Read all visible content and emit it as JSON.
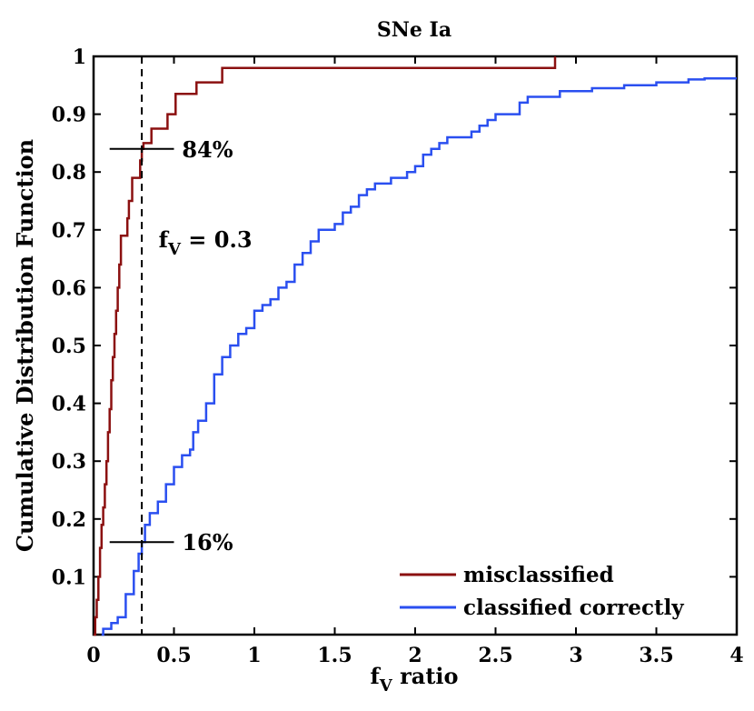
{
  "chart_data": {
    "type": "line",
    "step": true,
    "title": "SNe Ia",
    "xlabel_main": "f",
    "xlabel_sub": "V",
    "xlabel_rest": " ratio",
    "ylabel": "Cumulative Distribution Function",
    "xlim": [
      0,
      4
    ],
    "ylim": [
      0,
      1
    ],
    "x_ticks": [
      0,
      0.5,
      1,
      1.5,
      2,
      2.5,
      3,
      3.5,
      4
    ],
    "x_tick_labels": [
      "0",
      "0.5",
      "1",
      "1.5",
      "2",
      "2.5",
      "3",
      "3.5",
      "4"
    ],
    "y_ticks": [
      0.1,
      0.2,
      0.3,
      0.4,
      0.5,
      0.6,
      0.7,
      0.8,
      0.9,
      1
    ],
    "y_tick_labels": [
      "0.1",
      "0.2",
      "0.3",
      "0.4",
      "0.5",
      "0.6",
      "0.7",
      "0.8",
      "0.9",
      "1"
    ],
    "grid": false,
    "legend_position": "bottom-right",
    "series": [
      {
        "name": "misclassified",
        "color": "#8b1010",
        "points": [
          [
            0,
            0
          ],
          [
            0.01,
            0.03
          ],
          [
            0.02,
            0.06
          ],
          [
            0.03,
            0.1
          ],
          [
            0.04,
            0.15
          ],
          [
            0.05,
            0.19
          ],
          [
            0.06,
            0.22
          ],
          [
            0.07,
            0.26
          ],
          [
            0.08,
            0.3
          ],
          [
            0.09,
            0.35
          ],
          [
            0.1,
            0.39
          ],
          [
            0.11,
            0.44
          ],
          [
            0.12,
            0.48
          ],
          [
            0.13,
            0.52
          ],
          [
            0.14,
            0.56
          ],
          [
            0.15,
            0.6
          ],
          [
            0.16,
            0.64
          ],
          [
            0.17,
            0.69
          ],
          [
            0.2,
            0.69
          ],
          [
            0.21,
            0.72
          ],
          [
            0.22,
            0.75
          ],
          [
            0.24,
            0.79
          ],
          [
            0.28,
            0.79
          ],
          [
            0.29,
            0.82
          ],
          [
            0.3,
            0.84
          ],
          [
            0.31,
            0.85
          ],
          [
            0.35,
            0.85
          ],
          [
            0.36,
            0.875
          ],
          [
            0.45,
            0.875
          ],
          [
            0.46,
            0.9
          ],
          [
            0.5,
            0.9
          ],
          [
            0.51,
            0.935
          ],
          [
            0.63,
            0.935
          ],
          [
            0.64,
            0.955
          ],
          [
            0.79,
            0.955
          ],
          [
            0.8,
            0.98
          ],
          [
            2.86,
            0.98
          ],
          [
            2.87,
            1.0
          ]
        ]
      },
      {
        "name": "classified correctly",
        "color": "#2a4ff0",
        "points": [
          [
            0.05,
            0
          ],
          [
            0.06,
            0.01
          ],
          [
            0.1,
            0.01
          ],
          [
            0.11,
            0.02
          ],
          [
            0.15,
            0.03
          ],
          [
            0.2,
            0.07
          ],
          [
            0.25,
            0.11
          ],
          [
            0.28,
            0.14
          ],
          [
            0.3,
            0.16
          ],
          [
            0.32,
            0.19
          ],
          [
            0.35,
            0.21
          ],
          [
            0.4,
            0.23
          ],
          [
            0.45,
            0.26
          ],
          [
            0.5,
            0.29
          ],
          [
            0.55,
            0.31
          ],
          [
            0.6,
            0.32
          ],
          [
            0.62,
            0.35
          ],
          [
            0.65,
            0.37
          ],
          [
            0.7,
            0.4
          ],
          [
            0.75,
            0.45
          ],
          [
            0.8,
            0.48
          ],
          [
            0.85,
            0.5
          ],
          [
            0.9,
            0.52
          ],
          [
            0.95,
            0.53
          ],
          [
            1.0,
            0.56
          ],
          [
            1.05,
            0.57
          ],
          [
            1.1,
            0.58
          ],
          [
            1.15,
            0.6
          ],
          [
            1.2,
            0.61
          ],
          [
            1.25,
            0.64
          ],
          [
            1.3,
            0.66
          ],
          [
            1.35,
            0.68
          ],
          [
            1.4,
            0.7
          ],
          [
            1.45,
            0.7
          ],
          [
            1.5,
            0.71
          ],
          [
            1.55,
            0.73
          ],
          [
            1.6,
            0.74
          ],
          [
            1.65,
            0.76
          ],
          [
            1.7,
            0.77
          ],
          [
            1.75,
            0.78
          ],
          [
            1.8,
            0.78
          ],
          [
            1.85,
            0.79
          ],
          [
            1.9,
            0.79
          ],
          [
            1.95,
            0.8
          ],
          [
            2.0,
            0.81
          ],
          [
            2.05,
            0.83
          ],
          [
            2.1,
            0.84
          ],
          [
            2.15,
            0.85
          ],
          [
            2.2,
            0.86
          ],
          [
            2.3,
            0.86
          ],
          [
            2.35,
            0.87
          ],
          [
            2.4,
            0.88
          ],
          [
            2.45,
            0.89
          ],
          [
            2.5,
            0.9
          ],
          [
            2.6,
            0.9
          ],
          [
            2.65,
            0.92
          ],
          [
            2.7,
            0.93
          ],
          [
            2.8,
            0.93
          ],
          [
            2.9,
            0.94
          ],
          [
            3.0,
            0.94
          ],
          [
            3.1,
            0.945
          ],
          [
            3.3,
            0.95
          ],
          [
            3.5,
            0.955
          ],
          [
            3.7,
            0.96
          ],
          [
            3.8,
            0.962
          ],
          [
            4.0,
            0.962
          ]
        ]
      }
    ],
    "annotations": {
      "vline_x": 0.3,
      "vline_label_main": "f",
      "vline_label_sub": "V",
      "vline_label_rest": " = 0.3",
      "vline_label_pos": [
        0.45,
        0.67
      ],
      "marks": [
        {
          "text": "84%",
          "y": 0.84,
          "x_from": 0.1,
          "x_to": 0.5,
          "text_x": 0.55
        },
        {
          "text": "16%",
          "y": 0.16,
          "x_from": 0.1,
          "x_to": 0.5,
          "text_x": 0.55
        }
      ]
    }
  }
}
